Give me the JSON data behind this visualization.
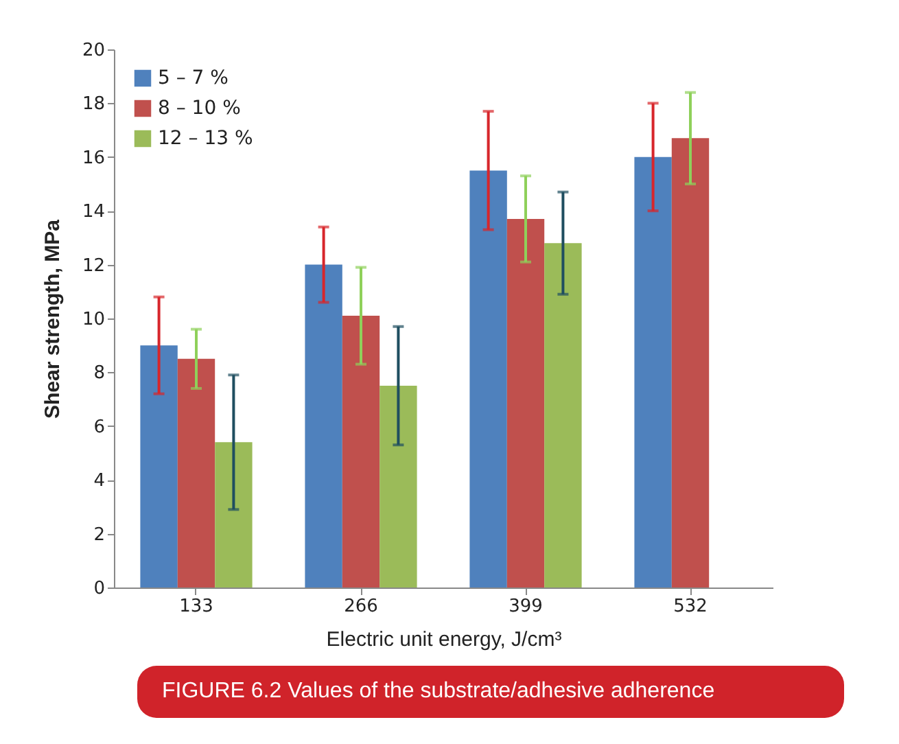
{
  "chart_data": {
    "type": "bar",
    "xlabel": "Electric unit energy, J/cm³",
    "ylabel": "Shear strength, MPa",
    "categories": [
      "133",
      "266",
      "399",
      "532"
    ],
    "series": [
      {
        "name": "5 – 7 %",
        "color": "#4f81bd",
        "values": [
          9.0,
          12.0,
          15.5,
          16.0
        ],
        "errors": [
          [
            7.2,
            10.8
          ],
          [
            10.6,
            13.4
          ],
          [
            13.3,
            17.7
          ],
          [
            14.0,
            18.0
          ]
        ]
      },
      {
        "name": "8 – 10 %",
        "color": "#c0504d",
        "values": [
          8.5,
          10.1,
          13.7,
          16.7
        ],
        "errors": [
          [
            7.4,
            9.6
          ],
          [
            8.3,
            11.9
          ],
          [
            12.1,
            15.3
          ],
          [
            15.0,
            18.4
          ]
        ]
      },
      {
        "name": "12 – 13 %",
        "color": "#9bbb59",
        "values": [
          5.4,
          7.5,
          12.8,
          null
        ],
        "errors": [
          [
            2.9,
            7.9
          ],
          [
            5.3,
            9.7
          ],
          [
            10.9,
            14.7
          ],
          null
        ]
      }
    ],
    "ylim": [
      0,
      20
    ],
    "yticks": [
      0,
      2,
      4,
      6,
      8,
      10,
      12,
      14,
      16,
      18,
      20
    ],
    "grid": false,
    "legend": "top left",
    "annotations": [
      "FIGURE 6.2 Values of the substrate/adhesive adherence"
    ]
  }
}
